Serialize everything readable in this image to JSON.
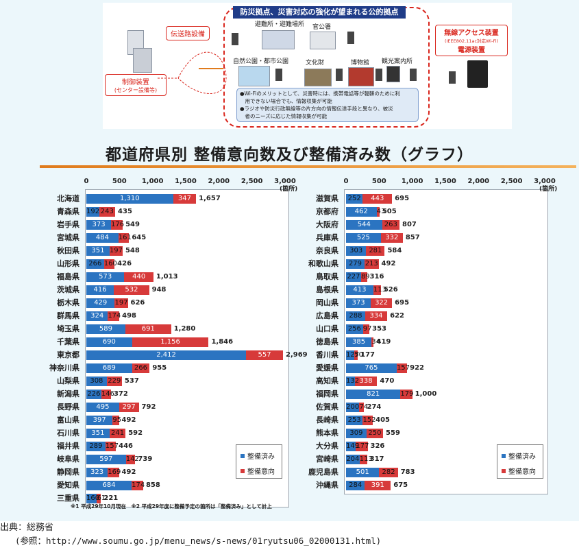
{
  "diagram": {
    "banner": "防災拠点、災害対応の強化が望まれる公的拠点",
    "transmission": "伝送路設備",
    "control_line1": "制御装置",
    "control_line2": "(センター設備等)",
    "wireless_line1": "無線アクセス装置",
    "wireless_line2": "(IEEE802.11ac対応Wi-Fi)",
    "wireless_line3": "電源装置",
    "sites": [
      "避難所・避難場所",
      "官公署",
      "自然公園・都市公園",
      "文化財",
      "博物館",
      "観光案内所"
    ],
    "note_lines": [
      "●Wi-Fiのメリットとして、災害時には、携帯電話等が輻輳のために利",
      "　用できない場合でも、情報収集が可能",
      "●ラジオや防災行政無線等の片方向の情報伝達手段と異なり、被災",
      "　者のニーズに応じた情報収集が可能"
    ]
  },
  "chart_data": {
    "type": "bar",
    "stacked": true,
    "orientation": "horizontal",
    "title": "都道府県別 整備意向数及び整備済み数（グラフ）",
    "xlim": [
      0,
      3000
    ],
    "ticks": [
      "0",
      "500",
      "1,000",
      "1,500",
      "2,000",
      "2,500",
      "3,000"
    ],
    "unit": "(箇所)",
    "legend": [
      "整備済み",
      "整備意向"
    ],
    "colors": {
      "done": "#2b74c1",
      "plan": "#d73a3a"
    },
    "left_panel": {
      "categories": [
        "北海道",
        "青森県",
        "岩手県",
        "宮城県",
        "秋田県",
        "山形県",
        "福島県",
        "茨城県",
        "栃木県",
        "群馬県",
        "埼玉県",
        "千葉県",
        "東京都",
        "神奈川県",
        "山梨県",
        "新潟県",
        "長野県",
        "富山県",
        "石川県",
        "福井県",
        "岐阜県",
        "静岡県",
        "愛知県",
        "三重県"
      ],
      "done": [
        1310,
        192,
        373,
        484,
        351,
        266,
        573,
        416,
        429,
        324,
        589,
        690,
        2412,
        689,
        308,
        226,
        495,
        397,
        351,
        289,
        597,
        323,
        684,
        160
      ],
      "plan": [
        347,
        243,
        176,
        161,
        197,
        160,
        440,
        532,
        197,
        174,
        691,
        1156,
        557,
        266,
        229,
        146,
        297,
        95,
        241,
        157,
        142,
        169,
        174,
        61
      ],
      "done_labels": [
        "1,310",
        "192",
        "373",
        "484",
        "351",
        "266",
        "573",
        "416",
        "429",
        "324",
        "589",
        "690",
        "2,412",
        "689",
        "308",
        "226",
        "495",
        "397",
        "351",
        "289",
        "597",
        "323",
        "684",
        "160"
      ],
      "plan_labels": [
        "347",
        "243",
        "176",
        "161",
        "197",
        "160",
        "440",
        "532",
        "197",
        "174",
        "691",
        "1,156",
        "557",
        "266",
        "229",
        "146",
        "297",
        "95",
        "241",
        "157",
        "142",
        "169",
        "174",
        "61"
      ],
      "total_labels": [
        "1,657",
        "435",
        "549",
        "645",
        "548",
        "426",
        "1,013",
        "948",
        "626",
        "498",
        "1,280",
        "1,846",
        "2,969",
        "955",
        "537",
        "372",
        "792",
        "492",
        "592",
        "446",
        "739",
        "492",
        "858",
        "221"
      ]
    },
    "right_panel": {
      "categories": [
        "滋賀県",
        "京都府",
        "大阪府",
        "兵庫県",
        "奈良県",
        "和歌山県",
        "鳥取県",
        "島根県",
        "岡山県",
        "広島県",
        "山口県",
        "徳島県",
        "香川県",
        "愛媛県",
        "高知県",
        "福岡県",
        "佐賀県",
        "長崎県",
        "熊本県",
        "大分県",
        "宮崎県",
        "鹿児島県",
        "沖縄県"
      ],
      "done": [
        252,
        462,
        544,
        525,
        303,
        279,
        227,
        413,
        373,
        288,
        256,
        385,
        127,
        765,
        132,
        821,
        200,
        253,
        309,
        149,
        204,
        501,
        284
      ],
      "plan": [
        443,
        43,
        263,
        332,
        281,
        213,
        89,
        113,
        322,
        334,
        97,
        34,
        50,
        157,
        338,
        179,
        74,
        152,
        250,
        177,
        113,
        282,
        391
      ],
      "done_labels": [
        "252",
        "462",
        "544",
        "525",
        "303",
        "279",
        "227",
        "413",
        "373",
        "288",
        "256",
        "385",
        "127",
        "765",
        "132",
        "821",
        "200",
        "253",
        "309",
        "149",
        "204",
        "501",
        "284"
      ],
      "plan_labels": [
        "443",
        "43",
        "263",
        "332",
        "281",
        "213",
        "89",
        "113",
        "322",
        "334",
        "97",
        "34",
        "50",
        "157",
        "338",
        "179",
        "74",
        "152",
        "250",
        "177",
        "113",
        "282",
        "391"
      ],
      "total_labels": [
        "695",
        "505",
        "807",
        "857",
        "584",
        "492",
        "316",
        "526",
        "695",
        "622",
        "353",
        "419",
        "177",
        "922",
        "470",
        "1,000",
        "274",
        "405",
        "559",
        "326",
        "317",
        "783",
        "675"
      ]
    },
    "footnote": "※1 平成29年10月現在　※2 平成29年度に整備予定の箇所は「整備済み」として計上"
  },
  "source": {
    "line1": "出典：総務省",
    "line2": "(参照：http://www.soumu.go.jp/menu_news/s-news/01ryutsu06_02000131.html)"
  }
}
